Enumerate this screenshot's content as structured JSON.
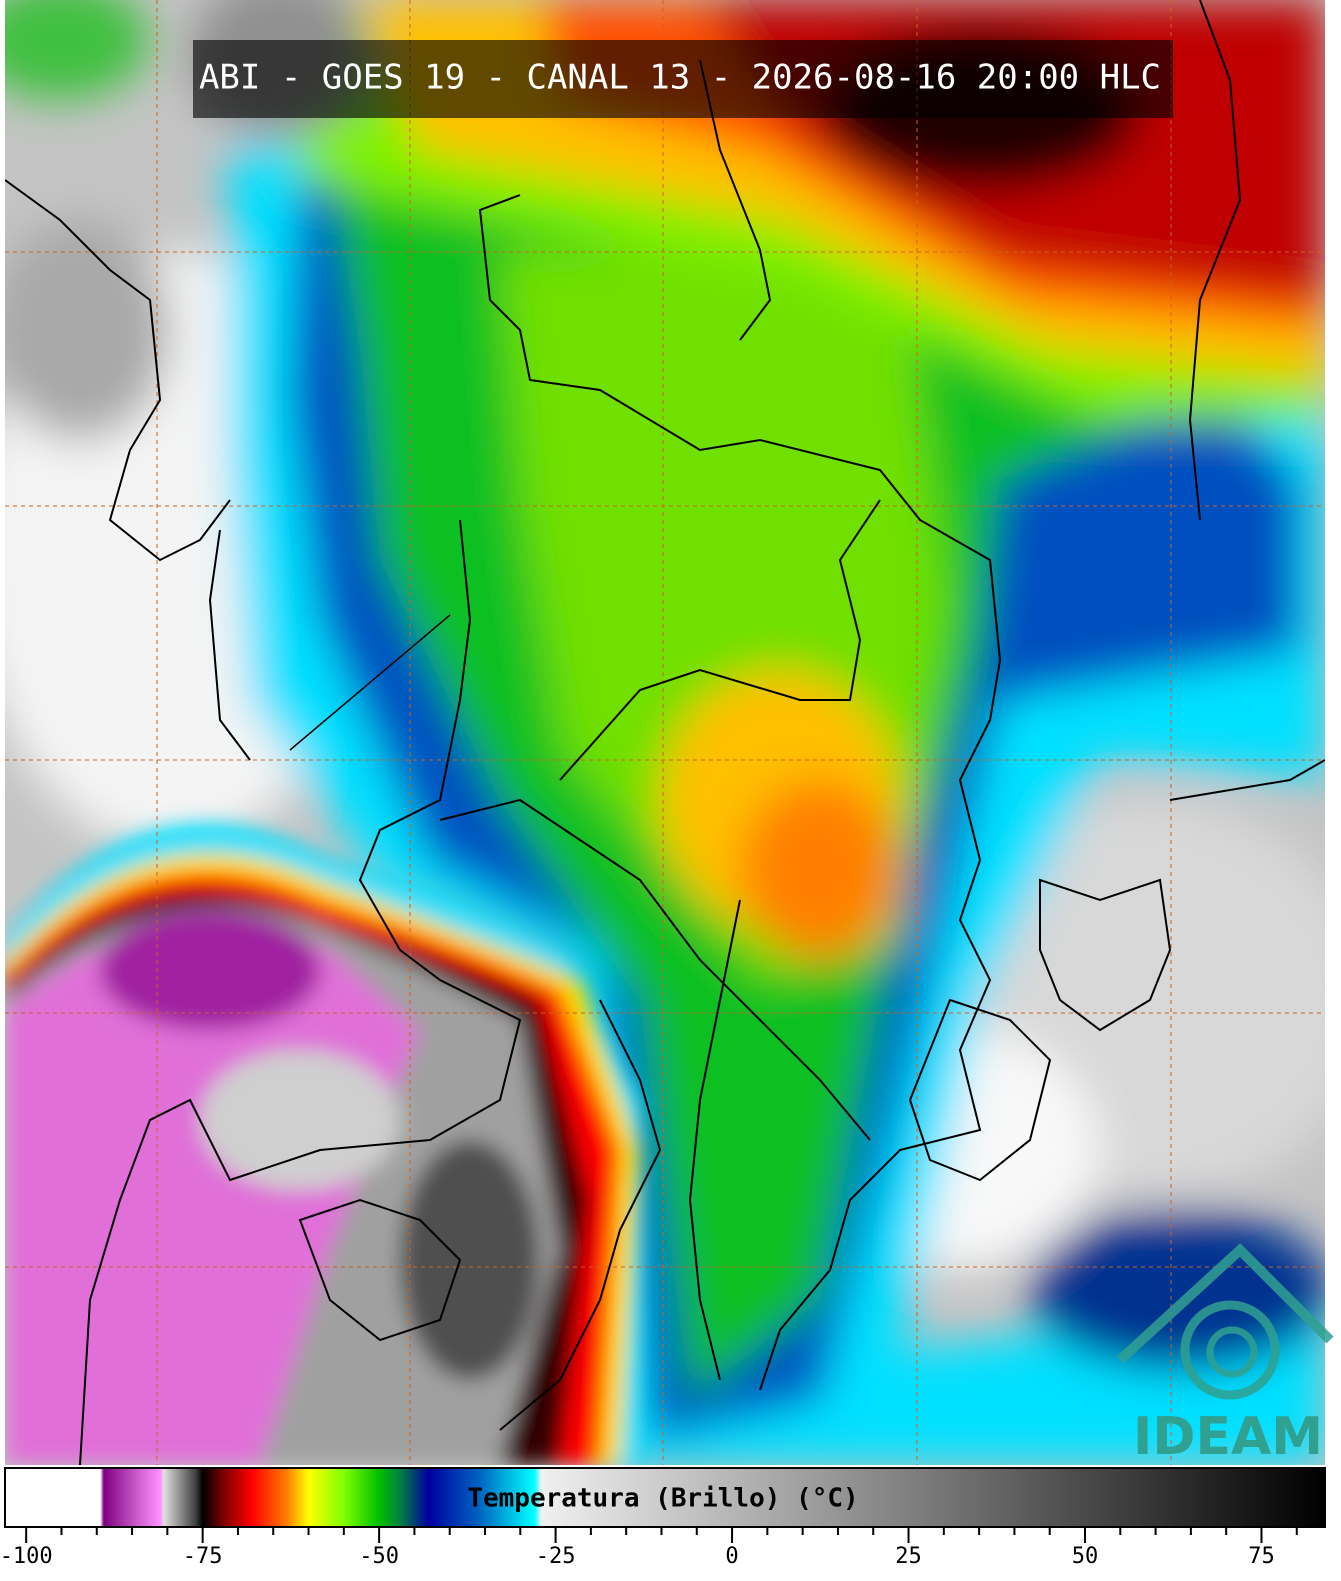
{
  "header": {
    "title": "ABI - GOES 19 - CANAL 13 - 2026-08-16 20:00 HLC"
  },
  "logo": {
    "text": "IDEAM"
  },
  "colorbar": {
    "label": "Temperatura (Brillo) (°C)",
    "range": [
      -103,
      84
    ],
    "ticks": [
      -100,
      -75,
      -50,
      -25,
      0,
      25,
      50,
      75
    ],
    "minor_ticks": [
      -95,
      -90,
      -85,
      -80,
      -70,
      -65,
      -60,
      -55,
      -45,
      -40,
      -35,
      -30,
      -20,
      -15,
      -10,
      -5,
      5,
      10,
      15,
      20,
      30,
      35,
      40,
      45,
      55,
      60,
      65,
      70,
      80
    ],
    "color_stops": [
      {
        "value": -103,
        "color": "#ffffff"
      },
      {
        "value": -89.5,
        "color": "#ffffff"
      },
      {
        "value": -89,
        "color": "#800080"
      },
      {
        "value": -84,
        "color": "#d060d0"
      },
      {
        "value": -81,
        "color": "#ff90ff"
      },
      {
        "value": -80.5,
        "color": "#e0e0e0"
      },
      {
        "value": -76,
        "color": "#404040"
      },
      {
        "value": -75,
        "color": "#000000"
      },
      {
        "value": -72,
        "color": "#800000"
      },
      {
        "value": -68,
        "color": "#ff0000"
      },
      {
        "value": -63,
        "color": "#ff8000"
      },
      {
        "value": -60,
        "color": "#ffff00"
      },
      {
        "value": -55,
        "color": "#80ff00"
      },
      {
        "value": -50,
        "color": "#00c000"
      },
      {
        "value": -47,
        "color": "#008040"
      },
      {
        "value": -43,
        "color": "#0000a0"
      },
      {
        "value": -36,
        "color": "#0060c0"
      },
      {
        "value": -28,
        "color": "#00ffff"
      },
      {
        "value": -27,
        "color": "#f0f0f0"
      },
      {
        "value": 84,
        "color": "#000000"
      }
    ]
  }
}
